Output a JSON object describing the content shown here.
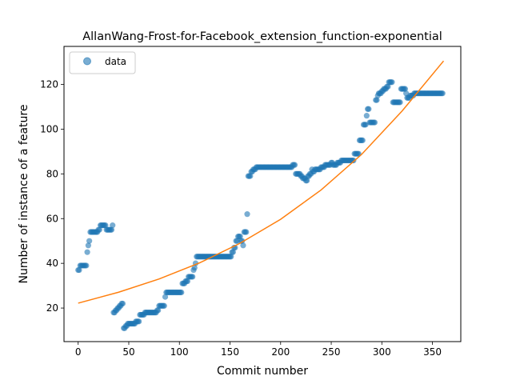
{
  "chart_data": {
    "type": "scatter",
    "title": "AllanWang-Frost-for-Facebook_extension_function-exponential",
    "xlabel": "Commit number",
    "ylabel": "Number of instance of a feature",
    "xlim": [
      -14,
      378
    ],
    "ylim": [
      5,
      137
    ],
    "xticks": [
      0,
      50,
      100,
      150,
      200,
      250,
      300,
      350
    ],
    "yticks": [
      20,
      40,
      60,
      80,
      100,
      120
    ],
    "grid": false,
    "legend": {
      "position": "top-left",
      "entries": [
        "data"
      ]
    },
    "colors": {
      "data": "#1f77b4",
      "fit": "#ff7f0e"
    },
    "series": [
      {
        "name": "data",
        "kind": "scatter",
        "runs": [
          [
            0,
            2,
            37
          ],
          [
            2,
            9,
            39
          ],
          [
            9,
            10,
            45
          ],
          [
            10,
            11,
            48
          ],
          [
            11,
            12,
            50
          ],
          [
            12,
            20,
            54
          ],
          [
            20,
            22,
            55
          ],
          [
            22,
            28,
            57
          ],
          [
            28,
            34,
            55
          ],
          [
            34,
            35,
            57
          ],
          [
            35,
            37,
            18
          ],
          [
            37,
            39,
            19
          ],
          [
            39,
            41,
            20
          ],
          [
            41,
            43,
            21
          ],
          [
            43,
            45,
            22
          ],
          [
            45,
            47,
            11
          ],
          [
            47,
            49,
            12
          ],
          [
            49,
            57,
            13
          ],
          [
            57,
            61,
            14
          ],
          [
            61,
            66,
            17
          ],
          [
            66,
            78,
            18
          ],
          [
            78,
            80,
            19
          ],
          [
            80,
            86,
            21
          ],
          [
            86,
            87,
            25
          ],
          [
            87,
            103,
            27
          ],
          [
            103,
            106,
            31
          ],
          [
            106,
            109,
            32
          ],
          [
            109,
            114,
            34
          ],
          [
            114,
            115,
            37
          ],
          [
            115,
            116,
            38
          ],
          [
            116,
            117,
            40
          ],
          [
            117,
            152,
            43
          ],
          [
            152,
            154,
            45
          ],
          [
            154,
            156,
            47
          ],
          [
            156,
            158,
            50
          ],
          [
            158,
            161,
            52
          ],
          [
            161,
            163,
            50
          ],
          [
            163,
            164,
            48
          ],
          [
            164,
            167,
            54
          ],
          [
            167,
            168,
            62
          ],
          [
            168,
            171,
            79
          ],
          [
            171,
            173,
            81
          ],
          [
            173,
            176,
            82
          ],
          [
            176,
            212,
            83
          ],
          [
            212,
            215,
            84
          ],
          [
            215,
            220,
            80
          ],
          [
            220,
            222,
            79
          ],
          [
            222,
            225,
            78
          ],
          [
            225,
            227,
            77
          ],
          [
            227,
            229,
            79
          ],
          [
            229,
            231,
            80
          ],
          [
            231,
            232,
            82
          ],
          [
            232,
            234,
            81
          ],
          [
            234,
            240,
            82
          ],
          [
            240,
            244,
            83
          ],
          [
            244,
            250,
            84
          ],
          [
            250,
            252,
            85
          ],
          [
            252,
            256,
            84
          ],
          [
            256,
            260,
            85
          ],
          [
            260,
            273,
            86
          ],
          [
            273,
            278,
            89
          ],
          [
            278,
            282,
            95
          ],
          [
            282,
            285,
            102
          ],
          [
            285,
            286,
            106
          ],
          [
            286,
            288,
            109
          ],
          [
            288,
            294,
            103
          ],
          [
            294,
            296,
            113
          ],
          [
            296,
            297,
            115
          ],
          [
            297,
            300,
            116
          ],
          [
            300,
            302,
            117
          ],
          [
            302,
            305,
            118
          ],
          [
            305,
            307,
            119
          ],
          [
            307,
            311,
            121
          ],
          [
            311,
            319,
            112
          ],
          [
            319,
            324,
            118
          ],
          [
            324,
            325,
            116
          ],
          [
            325,
            328,
            114
          ],
          [
            328,
            332,
            115
          ],
          [
            332,
            361,
            116
          ]
        ]
      },
      {
        "name": "",
        "kind": "line",
        "x": [
          0,
          40,
          80,
          120,
          160,
          200,
          240,
          280,
          320,
          361
        ],
        "y": [
          22.2,
          27.1,
          33.0,
          40.2,
          49.0,
          59.7,
          72.8,
          88.7,
          108.1,
          130.5
        ]
      }
    ]
  }
}
